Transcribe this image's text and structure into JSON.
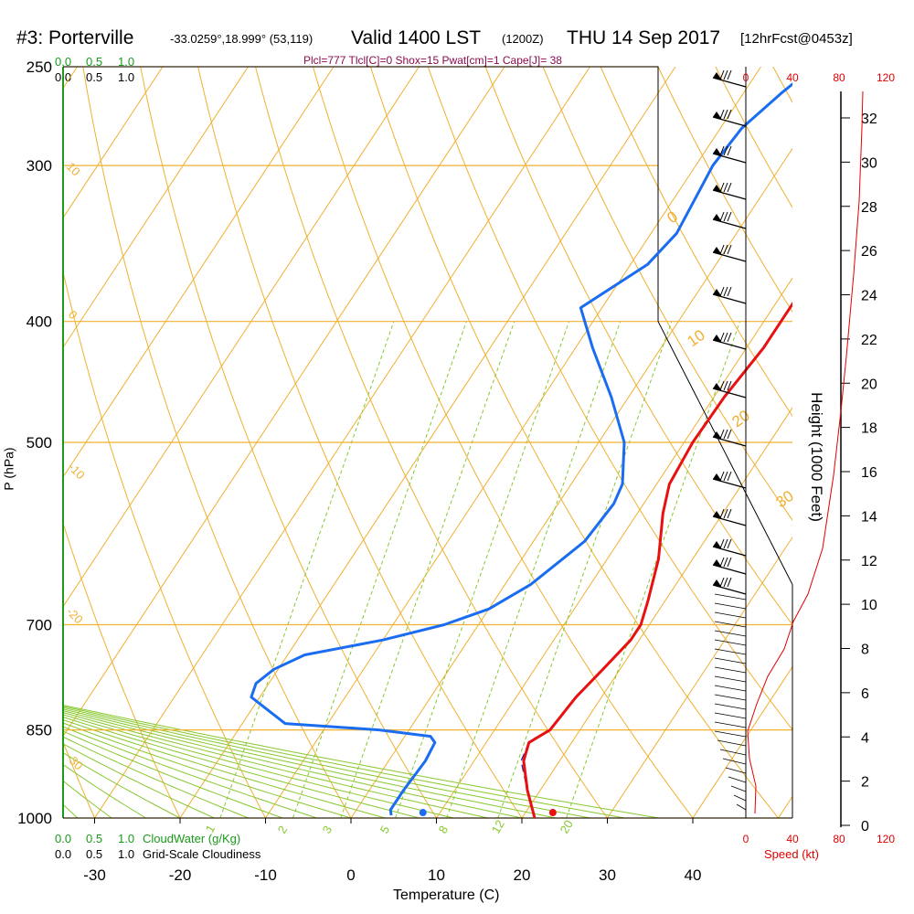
{
  "header": {
    "station": "#3: Porterville",
    "coords": "-33.0259°,18.999° (53,119)",
    "valid": "Valid 1400 LST",
    "zulu": "(1200Z)",
    "date": "THU 14 Sep 2017",
    "fcst": "[12hrFcst@0453z]",
    "indices": "Plcl=777 Tlcl[C]=0 Shox=15 Pwat[cm]=1 Cape[J]= 38"
  },
  "cloud_scale": {
    "top_green": [
      "0.0",
      "0.5",
      "1.0"
    ],
    "top_black": [
      "0.0",
      "0.5",
      "1.0"
    ],
    "bottom_green": [
      "0.0",
      "0.5",
      "1.0"
    ],
    "bottom_green_label": "CloudWater (g/Kg)",
    "bottom_black": [
      "0.0",
      "0.5",
      "1.0"
    ],
    "bottom_black_label": "Grid-Scale Cloudiness"
  },
  "colors": {
    "isotherm": "#f0b030",
    "dry_adiabat": "#f0b030",
    "moist_adiabat": "#88c830",
    "mixing_ratio": "#88c830",
    "temperature": "#e81010",
    "dewpoint": "#1a6cf0",
    "cloud": "#1a9c1a",
    "speed": "#e00000"
  },
  "chart_data": {
    "type": "line",
    "title": "#3: Porterville",
    "xlabel": "Temperature (C)",
    "ylabel": "P (hPa)",
    "xlim": [
      -35,
      35
    ],
    "x_ticks": [
      "-30",
      "-20",
      "-10",
      "0",
      "10",
      "20",
      "30",
      "40"
    ],
    "x_tick_values": [
      -30,
      -20,
      -10,
      0,
      10,
      20,
      30,
      40
    ],
    "pressure_labels": [
      "250",
      "300",
      "400",
      "500",
      "700",
      "850",
      "1000"
    ],
    "pressure_values": [
      250,
      300,
      400,
      500,
      700,
      850,
      1000
    ],
    "temperature_series": {
      "name": "Temperature",
      "points": [
        [
          1000,
          21.5
        ],
        [
          950,
          18.5
        ],
        [
          900,
          15.8
        ],
        [
          870,
          15
        ],
        [
          850,
          16.5
        ],
        [
          800,
          17
        ],
        [
          760,
          18
        ],
        [
          720,
          19
        ],
        [
          700,
          19
        ],
        [
          670,
          18
        ],
        [
          620,
          16
        ],
        [
          570,
          13
        ],
        [
          540,
          11.5
        ],
        [
          500,
          11
        ],
        [
          460,
          11.2
        ],
        [
          420,
          12
        ],
        [
          380,
          12
        ],
        [
          350,
          11
        ],
        [
          330,
          9
        ],
        [
          300,
          6.5
        ],
        [
          280,
          4
        ],
        [
          265,
          2
        ]
      ]
    },
    "dewpoint_series": {
      "name": "Dewpoint",
      "points": [
        [
          995,
          4.5
        ],
        [
          985,
          4
        ],
        [
          950,
          4
        ],
        [
          900,
          4.3
        ],
        [
          870,
          4
        ],
        [
          860,
          3
        ],
        [
          850,
          -3.5
        ],
        [
          840,
          -15
        ],
        [
          800,
          -21
        ],
        [
          780,
          -21.5
        ],
        [
          760,
          -20.5
        ],
        [
          740,
          -18
        ],
        [
          720,
          -10
        ],
        [
          700,
          -4
        ],
        [
          680,
          0
        ],
        [
          650,
          3
        ],
        [
          600,
          6
        ],
        [
          560,
          6.5
        ],
        [
          540,
          6
        ],
        [
          500,
          3
        ],
        [
          460,
          -2
        ],
        [
          420,
          -8
        ],
        [
          390,
          -12.5
        ],
        [
          360,
          -8
        ],
        [
          340,
          -7
        ],
        [
          300,
          -8
        ],
        [
          280,
          -7.5
        ],
        [
          262,
          -5.5
        ],
        [
          255,
          -4.5
        ]
      ]
    },
    "parcel_series": {
      "name": "Parcel",
      "points": [
        [
          1000,
          21.5
        ],
        [
          950,
          18.5
        ],
        [
          900,
          15.5
        ],
        [
          870,
          15
        ]
      ]
    },
    "surface_markers": {
      "temperature": 23.2,
      "dewpoint": 8
    },
    "dry_adiabat_labels": [
      "0",
      "10",
      "20",
      "30"
    ],
    "moist_adiabat_labels": [
      "10",
      "0",
      "-10",
      "-20",
      "-30"
    ],
    "mixing_ratio_labels": [
      "1",
      "2",
      "3",
      "5",
      "8",
      "12",
      "20"
    ],
    "height_axis": {
      "label": "Height (1000 Feet)",
      "ticks": [
        "0",
        "2",
        "4",
        "6",
        "8",
        "10",
        "12",
        "14",
        "16",
        "18",
        "20",
        "22",
        "24",
        "26",
        "28",
        "30",
        "32"
      ]
    },
    "speed_axis": {
      "label": "Speed (kt)",
      "ticks": [
        "0",
        "40",
        "80",
        "120"
      ]
    }
  }
}
